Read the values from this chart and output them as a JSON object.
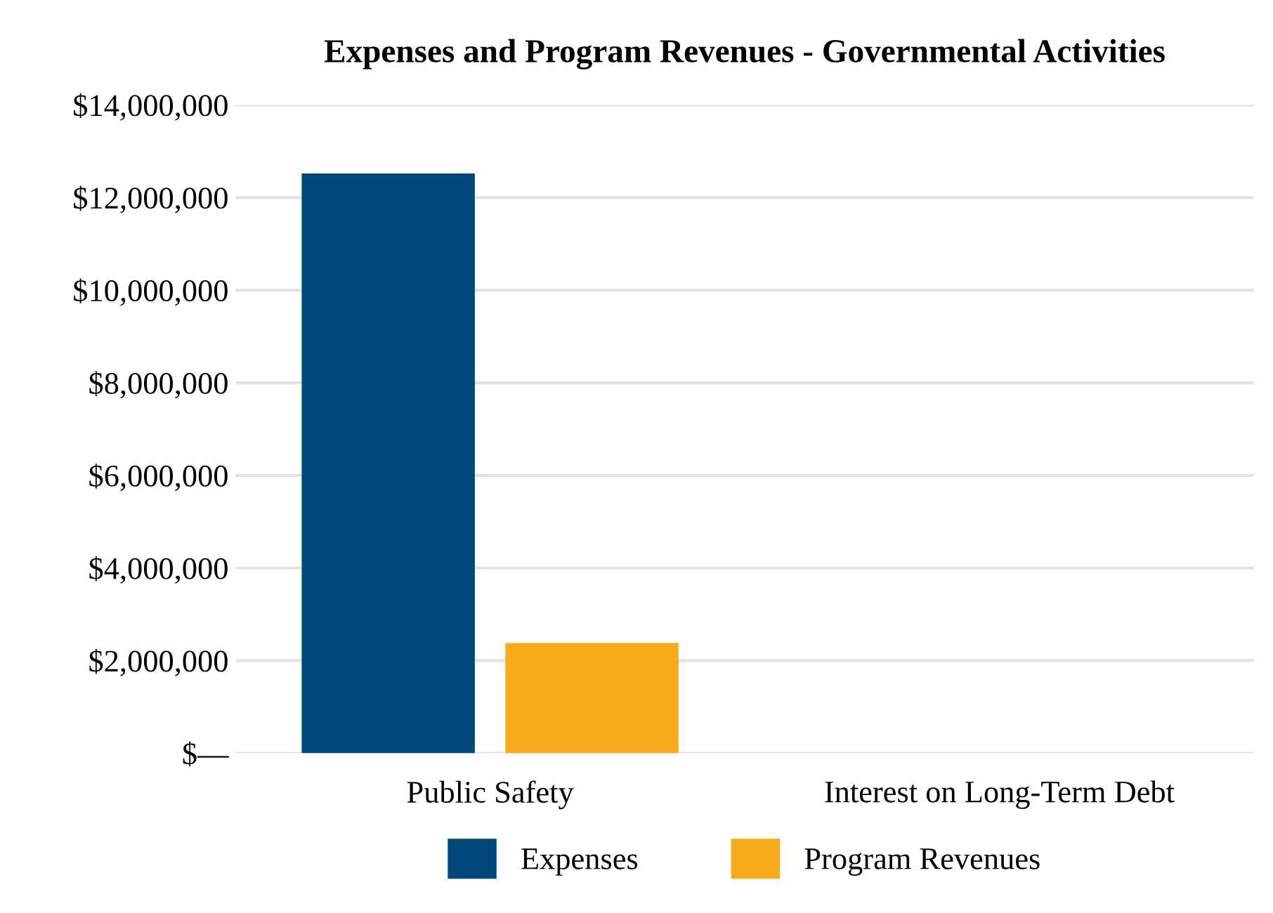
{
  "chart_data": {
    "type": "bar",
    "title": "Expenses and Program Revenues - Governmental Activities",
    "categories": [
      "Public Safety",
      "Interest on Long-Term Debt"
    ],
    "series": [
      {
        "name": "Expenses",
        "color": "#00497c",
        "values": [
          12520000,
          0
        ]
      },
      {
        "name": "Program Revenues",
        "color": "#f8ab19",
        "values": [
          2380000,
          0
        ]
      }
    ],
    "ylim": [
      0,
      14000000
    ],
    "yticks": [
      {
        "value": 0,
        "label": "$—"
      },
      {
        "value": 2000000,
        "label": "$2,000,000"
      },
      {
        "value": 4000000,
        "label": "$4,000,000"
      },
      {
        "value": 6000000,
        "label": "$6,000,000"
      },
      {
        "value": 8000000,
        "label": "$8,000,000"
      },
      {
        "value": 10000000,
        "label": "$10,000,000"
      },
      {
        "value": 12000000,
        "label": "$12,000,000"
      },
      {
        "value": 14000000,
        "label": "$14,000,000"
      }
    ],
    "grid": "y",
    "legend": "bottom"
  }
}
